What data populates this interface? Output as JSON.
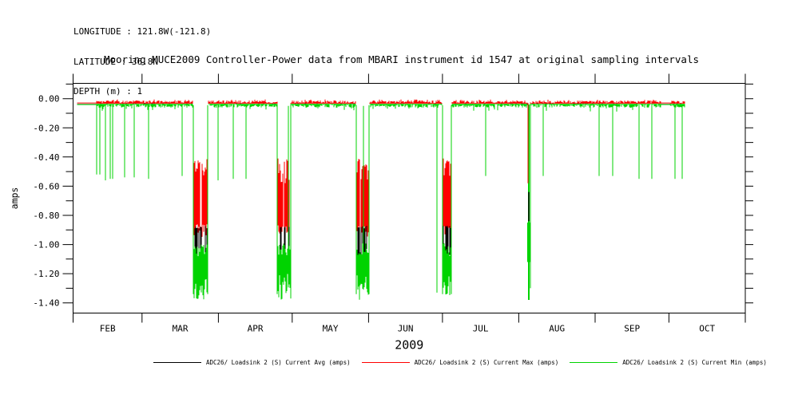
{
  "header": {
    "longitude": "LONGITUDE : 121.8W(-121.8)",
    "latitude": "LATITUDE : 36.8N",
    "depth": "DEPTH (m) : 1"
  },
  "title": "Mooring MUCE2009 Controller-Power data from MBARI instrument id 1547 at original sampling intervals",
  "chart_data": {
    "type": "line",
    "title": "Mooring MUCE2009 Controller-Power data from MBARI instrument id 1547 at original sampling intervals",
    "ylabel": "amps",
    "year_label": "2009",
    "background": "#ffffff",
    "axis_color": "#000000",
    "x_axis": {
      "unit": "day_of_year_2009",
      "range": [
        32,
        305
      ],
      "month_tick_days": [
        32,
        60,
        91,
        121,
        152,
        182,
        213,
        244,
        274,
        305
      ],
      "month_labels": [
        "FEB",
        "MAR",
        "APR",
        "MAY",
        "JUN",
        "JUL",
        "AUG",
        "SEP",
        "OCT"
      ]
    },
    "y_axis": {
      "range": [
        0.105,
        -1.47
      ],
      "major_tick_values": [
        0,
        -0.2,
        -0.4,
        -0.6,
        -0.8,
        -1,
        -1.2,
        -1.4
      ],
      "major_tick_labels": [
        "0.00",
        "-0.20",
        "-0.40",
        "-0.60",
        "-0.80",
        "-1.00",
        "-1.20",
        "-1.40"
      ],
      "minor_tick_values": [
        0.1,
        -0.1,
        -0.3,
        -0.5,
        -0.7,
        -0.9,
        -1.1,
        -1.3
      ]
    },
    "series": [
      {
        "name": "ADC26/ Loadsink 2 (S) Current Avg (amps)",
        "color": "#000000",
        "role": "avg"
      },
      {
        "name": "ADC26/ Loadsink 2 (S) Current Max (amps)",
        "color": "#ff0000",
        "role": "max"
      },
      {
        "name": "ADC26/ Loadsink 2 (S) Current Min (amps)",
        "color": "#00d300",
        "role": "min"
      }
    ],
    "baseline": {
      "start_day": 33.7,
      "end_day": 280.3,
      "avg_level": -0.035,
      "max_band": [
        -0.03,
        -0.012
      ],
      "min_band": [
        -0.038,
        -0.062
      ],
      "smooth_until_day": 41.3,
      "quiet_segments": [
        [
          270.9,
          274.2
        ]
      ]
    },
    "min_spikes": [
      {
        "day": 41.7,
        "depth": -0.52
      },
      {
        "day": 42.8,
        "depth": -0.52
      },
      {
        "day": 45.2,
        "depth": -0.56
      },
      {
        "day": 47.1,
        "depth": -0.55
      },
      {
        "day": 48.0,
        "depth": -0.55
      },
      {
        "day": 53.0,
        "depth": -0.54
      },
      {
        "day": 56.9,
        "depth": -0.54
      },
      {
        "day": 62.8,
        "depth": -0.55
      },
      {
        "day": 76.3,
        "depth": -0.53
      },
      {
        "day": 90.9,
        "depth": -0.56
      },
      {
        "day": 96.9,
        "depth": -0.55
      },
      {
        "day": 102.3,
        "depth": -0.55
      },
      {
        "day": 179.7,
        "depth": -1.33
      },
      {
        "day": 199.6,
        "depth": -0.53
      },
      {
        "day": 223.0,
        "depth": -0.53
      },
      {
        "day": 245.6,
        "depth": -0.53
      },
      {
        "day": 251.0,
        "depth": -0.53
      },
      {
        "day": 262.0,
        "depth": -0.55
      },
      {
        "day": 267.2,
        "depth": -0.55
      },
      {
        "day": 276.4,
        "depth": -0.55
      },
      {
        "day": 279.5,
        "depth": -0.55
      }
    ],
    "bursts": [
      {
        "start_day": 80.8,
        "end_day": 86.8
      },
      {
        "start_day": 114.9,
        "end_day": 120.3
      },
      {
        "start_day": 147.0,
        "end_day": 152.2
      },
      {
        "start_day": 181.9,
        "end_day": 185.7
      }
    ],
    "burst_profile": {
      "max_top_range": [
        -0.42,
        -0.58
      ],
      "max_spike_top": -0.41,
      "max_bottom_range": [
        -0.86,
        -0.95
      ],
      "avg_range": [
        -0.87,
        -1.11
      ],
      "min_top_range": [
        -0.99,
        -1.08
      ],
      "min_bottom_range": [
        -1.2,
        -1.35
      ],
      "min_spike_depth": -1.38,
      "edge_depth": -1.34
    },
    "tall_spike": {
      "day": 217.0,
      "min_depth": -1.38,
      "max_segment": [
        -0.03,
        -0.58
      ],
      "avg_segment": [
        -0.64,
        -0.84
      ],
      "min_dense_segment": [
        -0.85,
        -1.12
      ]
    }
  },
  "legend": {
    "items": [
      {
        "label": "ADC26/ Loadsink 2 (S) Current Avg (amps)",
        "color": "#000000"
      },
      {
        "label": "ADC26/ Loadsink 2 (S) Current Max (amps)",
        "color": "#ff0000"
      },
      {
        "label": "ADC26/ Loadsink 2 (S) Current Min (amps)",
        "color": "#00d300"
      }
    ]
  }
}
